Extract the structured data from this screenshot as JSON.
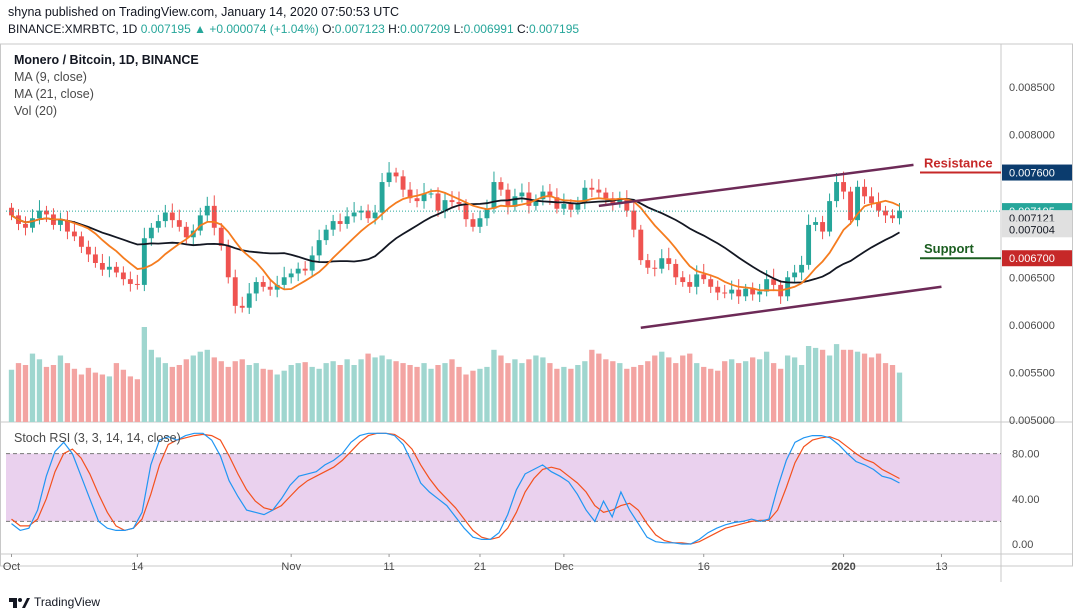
{
  "header": {
    "published": "shyna published on TradingView.com, January 14, 2020 07:50:53 UTC",
    "symbol": "BINANCE:XMRBTC, 1D",
    "last": "0.007195",
    "change": "▲ +0.000074 (+1.04%)",
    "o_label": "O:",
    "o": "0.007123",
    "h_label": "H:",
    "h": "0.007209",
    "l_label": "L:",
    "l": "0.006991",
    "c_label": "C:",
    "c": "0.007195"
  },
  "legend": {
    "title": "Monero / Bitcoin, 1D, BINANCE",
    "ma9": "MA (9, close)",
    "ma21": "MA (21, close)",
    "vol": "Vol (20)"
  },
  "rsi_legend": "Stoch RSI (3, 3, 14, 14, close)",
  "footer": {
    "brand": "TradingView"
  },
  "colors": {
    "bull": "#26a69a",
    "bear": "#ef5350",
    "ma9": "#f57c1f",
    "ma21": "#131722",
    "trend": "#6d2a57",
    "k": "#2196f3",
    "d": "#f4511e",
    "rsi_band": "#e1bee7"
  },
  "chart_data": [
    {
      "type": "candlestick",
      "title": "Monero / Bitcoin, 1D, BINANCE",
      "ylim": [
        0.00498,
        0.00895
      ],
      "y_ticks": [
        "0.008500",
        "0.008000",
        "0.007600",
        "0.007195",
        "0.007121",
        "0.007004",
        "0.006700",
        "0.006500",
        "0.006000",
        "0.005500",
        "0.005000"
      ],
      "x_ticks": [
        "Oct",
        "14",
        "Nov",
        "11",
        "21",
        "Dec",
        "16",
        "2020",
        "13"
      ],
      "annotations": [
        "Resistance",
        "Support"
      ],
      "price_labels": [
        {
          "text": "0.007600",
          "value": 0.0076,
          "color": "#0b3c6e"
        },
        {
          "text": "0.007195",
          "value": 0.007195,
          "color": "#26a69a"
        },
        {
          "text": "0.007121",
          "value": 0.007121,
          "color": "#e0e0e0"
        },
        {
          "text": "0.007004",
          "value": 0.007004,
          "color": "#e0e0e0"
        },
        {
          "text": "0.006700",
          "value": 0.0067,
          "color": "#c62828"
        }
      ],
      "trendlines": [
        {
          "name": "resistance",
          "from": [
            84,
            0.00725
          ],
          "to": [
            129,
            0.00768
          ]
        },
        {
          "name": "support",
          "from": [
            90,
            0.00597
          ],
          "to": [
            133,
            0.0064
          ]
        }
      ],
      "horizontal_marks": [
        {
          "label": "Resistance",
          "value": 0.0076,
          "color": "#c62828"
        },
        {
          "label": "Support",
          "value": 0.0067,
          "color": "#1b5e20"
        }
      ],
      "closes": [
        0.00715,
        0.00706,
        0.00702,
        0.00712,
        0.0072,
        0.00716,
        0.00705,
        0.0071,
        0.00698,
        0.00693,
        0.00682,
        0.00674,
        0.00665,
        0.00658,
        0.00661,
        0.00655,
        0.00648,
        0.00643,
        0.00642,
        0.00691,
        0.00702,
        0.00709,
        0.00718,
        0.0071,
        0.00703,
        0.00692,
        0.00699,
        0.00715,
        0.00725,
        0.00702,
        0.00683,
        0.0065,
        0.0062,
        0.00618,
        0.00633,
        0.00645,
        0.0064,
        0.00637,
        0.00642,
        0.0065,
        0.00654,
        0.00659,
        0.00657,
        0.00673,
        0.00689,
        0.007,
        0.00709,
        0.00706,
        0.00714,
        0.00718,
        0.0072,
        0.00712,
        0.00718,
        0.0075,
        0.0076,
        0.00756,
        0.00742,
        0.00733,
        0.0073,
        0.00738,
        0.00738,
        0.0072,
        0.00731,
        0.00729,
        0.00727,
        0.00711,
        0.00703,
        0.00712,
        0.00722,
        0.0075,
        0.00742,
        0.00724,
        0.00735,
        0.00739,
        0.00725,
        0.00732,
        0.0074,
        0.00734,
        0.00722,
        0.00727,
        0.00721,
        0.00728,
        0.00744,
        0.00742,
        0.00739,
        0.00733,
        0.00728,
        0.00732,
        0.0072,
        0.007,
        0.00668,
        0.0066,
        0.00659,
        0.0067,
        0.00664,
        0.0065,
        0.00645,
        0.0064,
        0.00653,
        0.00648,
        0.0064,
        0.00634,
        0.00633,
        0.00637,
        0.0063,
        0.00638,
        0.00632,
        0.00635,
        0.00648,
        0.00642,
        0.0063,
        0.0065,
        0.00655,
        0.00663,
        0.00705,
        0.00708,
        0.00698,
        0.0073,
        0.0075,
        0.0074,
        0.0071,
        0.00745,
        0.00735,
        0.00728,
        0.0072,
        0.00715,
        0.00712,
        0.0072
      ],
      "volumes": [
        55,
        62,
        60,
        72,
        66,
        58,
        60,
        70,
        62,
        56,
        50,
        57,
        52,
        50,
        48,
        62,
        55,
        48,
        45,
        100,
        76,
        68,
        62,
        58,
        60,
        66,
        70,
        74,
        76,
        68,
        64,
        58,
        64,
        66,
        60,
        62,
        56,
        55,
        50,
        54,
        60,
        62,
        63,
        58,
        56,
        62,
        64,
        60,
        66,
        60,
        66,
        72,
        68,
        70,
        66,
        64,
        62,
        60,
        58,
        62,
        56,
        60,
        62,
        66,
        58,
        50,
        54,
        56,
        58,
        76,
        70,
        62,
        66,
        62,
        66,
        70,
        68,
        62,
        56,
        58,
        56,
        60,
        64,
        76,
        72,
        66,
        64,
        62,
        56,
        58,
        60,
        64,
        70,
        74,
        68,
        62,
        70,
        72,
        62,
        58,
        56,
        54,
        64,
        66,
        62,
        64,
        68,
        66,
        74,
        62,
        56,
        70,
        68,
        60,
        80,
        78,
        76,
        70,
        82,
        76,
        76,
        74,
        72,
        68,
        72,
        62,
        60,
        52
      ],
      "rsi_k": [
        18,
        12,
        14,
        30,
        60,
        82,
        90,
        80,
        60,
        40,
        20,
        14,
        12,
        12,
        14,
        28,
        70,
        92,
        95,
        92,
        96,
        98,
        98,
        92,
        78,
        56,
        42,
        30,
        28,
        26,
        30,
        40,
        52,
        60,
        62,
        64,
        70,
        74,
        80,
        90,
        96,
        98,
        98,
        98,
        96,
        88,
        72,
        54,
        46,
        40,
        34,
        24,
        14,
        6,
        4,
        4,
        10,
        26,
        48,
        62,
        66,
        70,
        64,
        60,
        55,
        44,
        30,
        20,
        38,
        24,
        46,
        30,
        18,
        6,
        2,
        1,
        1,
        0,
        0,
        4,
        10,
        14,
        17,
        19,
        20,
        22,
        20,
        22,
        50,
        74,
        90,
        94,
        96,
        96,
        94,
        88,
        80,
        73,
        70,
        66,
        60,
        58,
        54
      ],
      "rsi_d": [
        22,
        16,
        16,
        22,
        40,
        64,
        80,
        84,
        76,
        62,
        44,
        28,
        16,
        12,
        14,
        22,
        44,
        70,
        88,
        92,
        94,
        96,
        97,
        96,
        92,
        78,
        62,
        48,
        38,
        32,
        30,
        34,
        42,
        50,
        56,
        60,
        64,
        68,
        74,
        82,
        90,
        96,
        98,
        98,
        97,
        92,
        84,
        70,
        58,
        48,
        40,
        32,
        22,
        12,
        6,
        4,
        6,
        14,
        28,
        46,
        58,
        66,
        68,
        66,
        60,
        54,
        46,
        34,
        28,
        30,
        34,
        36,
        30,
        18,
        8,
        3,
        1,
        1,
        0,
        2,
        6,
        10,
        14,
        16,
        18,
        20,
        21,
        21,
        30,
        50,
        72,
        86,
        92,
        94,
        95,
        92,
        86,
        80,
        75,
        72,
        66,
        62,
        58
      ],
      "rsi_ylim": [
        -8,
        108
      ],
      "rsi_ticks": [
        "80.00",
        "40.00",
        "0.00"
      ]
    }
  ]
}
